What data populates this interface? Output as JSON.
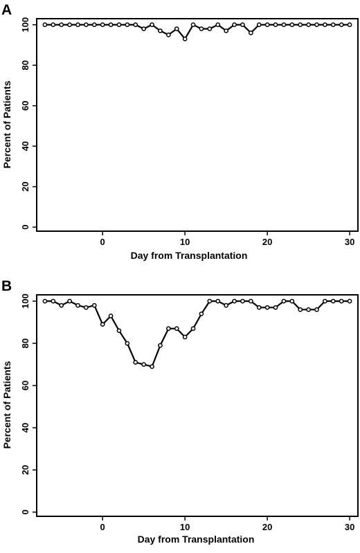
{
  "figure": {
    "panels": [
      "A",
      "B"
    ]
  },
  "chart_data": [
    {
      "panel": "A",
      "type": "line",
      "title": "",
      "xlabel": "Day from Transplantation",
      "ylabel": "Percent of Patients",
      "xlim": [
        -8,
        31
      ],
      "ylim": [
        -2,
        103
      ],
      "xticks": [
        0,
        10,
        20,
        30
      ],
      "yticks": [
        0,
        20,
        40,
        60,
        80,
        100
      ],
      "grid": false,
      "legend": "none",
      "series": [
        {
          "x": [
            -7,
            -6,
            -5,
            -4,
            -3,
            -2,
            -1,
            0,
            1,
            2,
            3,
            4,
            5,
            6,
            7,
            8,
            9,
            10,
            11,
            12,
            13,
            14,
            15,
            16,
            17,
            18,
            19,
            20,
            21,
            22,
            23,
            24,
            25,
            26,
            27,
            28,
            29,
            30
          ],
          "y": [
            100,
            100,
            100,
            100,
            100,
            100,
            100,
            100,
            100,
            100,
            100,
            100,
            98,
            100,
            97,
            95,
            98,
            93,
            100,
            98,
            98,
            100,
            97,
            100,
            100,
            96,
            100,
            100,
            100,
            100,
            100,
            100,
            100,
            100,
            100,
            100,
            100,
            100
          ]
        }
      ]
    },
    {
      "panel": "B",
      "type": "line",
      "title": "",
      "xlabel": "Day from Transplantation",
      "ylabel": "Percent of Patients",
      "xlim": [
        -8,
        31
      ],
      "ylim": [
        -2,
        103
      ],
      "xticks": [
        0,
        10,
        20,
        30
      ],
      "yticks": [
        0,
        20,
        40,
        60,
        80,
        100
      ],
      "grid": false,
      "legend": "none",
      "series": [
        {
          "x": [
            -7,
            -6,
            -5,
            -4,
            -3,
            -2,
            -1,
            0,
            1,
            2,
            3,
            4,
            5,
            6,
            7,
            8,
            9,
            10,
            11,
            12,
            13,
            14,
            15,
            16,
            17,
            18,
            19,
            20,
            21,
            22,
            23,
            24,
            25,
            26,
            27,
            28,
            29,
            30
          ],
          "y": [
            100,
            100,
            98,
            100,
            98,
            97,
            98,
            89,
            93,
            86,
            80,
            71,
            70,
            69,
            79,
            87,
            87,
            83,
            87,
            94,
            100,
            100,
            98,
            100,
            100,
            100,
            97,
            97,
            97,
            100,
            100,
            96,
            96,
            96,
            100,
            100,
            100,
            100
          ]
        }
      ]
    }
  ]
}
